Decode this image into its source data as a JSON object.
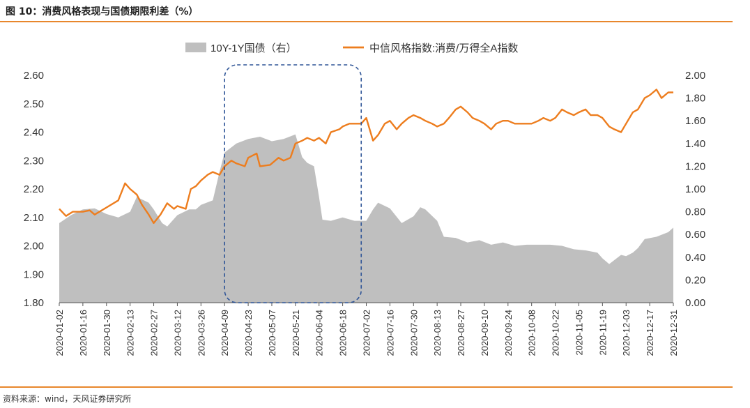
{
  "figure_title": "图 10：消费风格表现与国债期限利差（%）",
  "source": "资料来源：wind，天风证券研究所",
  "colors": {
    "area": "#bfbfbf",
    "line": "#ed7d1e",
    "highlight_box": "#2f5597",
    "accent_rule": "#e8872c"
  },
  "chart_data": {
    "type": "line+area",
    "x_ticks": [
      "2020-01-02",
      "2020-01-16",
      "2020-01-30",
      "2020-02-13",
      "2020-02-27",
      "2020-03-12",
      "2020-03-26",
      "2020-04-09",
      "2020-04-23",
      "2020-05-07",
      "2020-05-21",
      "2020-06-04",
      "2020-06-18",
      "2020-07-02",
      "2020-07-16",
      "2020-07-30",
      "2020-08-13",
      "2020-08-27",
      "2020-09-10",
      "2020-09-24",
      "2020-10-08",
      "2020-10-22",
      "2020-11-05",
      "2020-11-19",
      "2020-12-03",
      "2020-12-17",
      "2020-12-31"
    ],
    "y_left": {
      "ylim": [
        1.8,
        2.6
      ],
      "ticks": [
        "1.80",
        "1.90",
        "2.00",
        "2.10",
        "2.20",
        "2.30",
        "2.40",
        "2.50",
        "2.60"
      ]
    },
    "y_right": {
      "ylim": [
        0,
        2.0
      ],
      "ticks": [
        "0.00",
        "0.20",
        "0.40",
        "0.60",
        "0.80",
        "1.00",
        "1.20",
        "1.40",
        "1.60",
        "1.80",
        "2.00"
      ]
    },
    "legend_position": "top-center",
    "series": [
      {
        "name": "10Y-1Y国债（右）",
        "type": "area",
        "axis": "right",
        "points": [
          [
            "2020-01-02",
            0.7
          ],
          [
            "2020-01-09",
            0.77
          ],
          [
            "2020-01-16",
            0.82
          ],
          [
            "2020-01-23",
            0.83
          ],
          [
            "2020-01-30",
            0.78
          ],
          [
            "2020-02-06",
            0.75
          ],
          [
            "2020-02-13",
            0.8
          ],
          [
            "2020-02-17",
            0.93
          ],
          [
            "2020-02-24",
            0.88
          ],
          [
            "2020-02-27",
            0.82
          ],
          [
            "2020-03-03",
            0.7
          ],
          [
            "2020-03-06",
            0.67
          ],
          [
            "2020-03-12",
            0.77
          ],
          [
            "2020-03-19",
            0.82
          ],
          [
            "2020-03-23",
            0.82
          ],
          [
            "2020-03-26",
            0.86
          ],
          [
            "2020-04-02",
            0.9
          ],
          [
            "2020-04-06",
            1.15
          ],
          [
            "2020-04-09",
            1.32
          ],
          [
            "2020-04-16",
            1.4
          ],
          [
            "2020-04-23",
            1.44
          ],
          [
            "2020-04-30",
            1.46
          ],
          [
            "2020-05-07",
            1.42
          ],
          [
            "2020-05-14",
            1.44
          ],
          [
            "2020-05-21",
            1.48
          ],
          [
            "2020-05-25",
            1.28
          ],
          [
            "2020-05-28",
            1.23
          ],
          [
            "2020-06-01",
            1.2
          ],
          [
            "2020-06-04",
            0.93
          ],
          [
            "2020-06-06",
            0.73
          ],
          [
            "2020-06-11",
            0.72
          ],
          [
            "2020-06-18",
            0.75
          ],
          [
            "2020-06-25",
            0.72
          ],
          [
            "2020-07-02",
            0.72
          ],
          [
            "2020-07-06",
            0.82
          ],
          [
            "2020-07-09",
            0.88
          ],
          [
            "2020-07-16",
            0.83
          ],
          [
            "2020-07-23",
            0.7
          ],
          [
            "2020-07-30",
            0.76
          ],
          [
            "2020-08-03",
            0.84
          ],
          [
            "2020-08-06",
            0.82
          ],
          [
            "2020-08-13",
            0.72
          ],
          [
            "2020-08-17",
            0.58
          ],
          [
            "2020-08-24",
            0.57
          ],
          [
            "2020-08-31",
            0.53
          ],
          [
            "2020-09-07",
            0.55
          ],
          [
            "2020-09-14",
            0.51
          ],
          [
            "2020-09-21",
            0.53
          ],
          [
            "2020-09-28",
            0.5
          ],
          [
            "2020-10-05",
            0.51
          ],
          [
            "2020-10-12",
            0.51
          ],
          [
            "2020-10-19",
            0.51
          ],
          [
            "2020-10-26",
            0.5
          ],
          [
            "2020-11-02",
            0.47
          ],
          [
            "2020-11-09",
            0.46
          ],
          [
            "2020-11-16",
            0.44
          ],
          [
            "2020-11-19",
            0.39
          ],
          [
            "2020-11-23",
            0.34
          ],
          [
            "2020-11-30",
            0.42
          ],
          [
            "2020-12-03",
            0.41
          ],
          [
            "2020-12-07",
            0.44
          ],
          [
            "2020-12-10",
            0.48
          ],
          [
            "2020-12-14",
            0.56
          ],
          [
            "2020-12-21",
            0.58
          ],
          [
            "2020-12-28",
            0.62
          ],
          [
            "2020-12-31",
            0.66
          ]
        ]
      },
      {
        "name": "中信风格指数:消费/万得全A指数",
        "type": "line",
        "axis": "left",
        "points": [
          [
            "2020-01-02",
            2.13
          ],
          [
            "2020-01-06",
            2.105
          ],
          [
            "2020-01-10",
            2.12
          ],
          [
            "2020-01-16",
            2.12
          ],
          [
            "2020-01-20",
            2.125
          ],
          [
            "2020-01-23",
            2.11
          ],
          [
            "2020-01-30",
            2.135
          ],
          [
            "2020-02-06",
            2.16
          ],
          [
            "2020-02-10",
            2.22
          ],
          [
            "2020-02-13",
            2.2
          ],
          [
            "2020-02-17",
            2.18
          ],
          [
            "2020-02-20",
            2.145
          ],
          [
            "2020-02-24",
            2.11
          ],
          [
            "2020-02-27",
            2.08
          ],
          [
            "2020-03-02",
            2.11
          ],
          [
            "2020-03-06",
            2.15
          ],
          [
            "2020-03-10",
            2.13
          ],
          [
            "2020-03-12",
            2.14
          ],
          [
            "2020-03-17",
            2.13
          ],
          [
            "2020-03-20",
            2.2
          ],
          [
            "2020-03-23",
            2.21
          ],
          [
            "2020-03-26",
            2.23
          ],
          [
            "2020-03-30",
            2.25
          ],
          [
            "2020-04-02",
            2.26
          ],
          [
            "2020-04-06",
            2.25
          ],
          [
            "2020-04-09",
            2.28
          ],
          [
            "2020-04-13",
            2.3
          ],
          [
            "2020-04-16",
            2.29
          ],
          [
            "2020-04-21",
            2.28
          ],
          [
            "2020-04-23",
            2.31
          ],
          [
            "2020-04-28",
            2.325
          ],
          [
            "2020-04-30",
            2.28
          ],
          [
            "2020-05-06",
            2.285
          ],
          [
            "2020-05-07",
            2.29
          ],
          [
            "2020-05-11",
            2.31
          ],
          [
            "2020-05-14",
            2.3
          ],
          [
            "2020-05-18",
            2.31
          ],
          [
            "2020-05-21",
            2.36
          ],
          [
            "2020-05-25",
            2.37
          ],
          [
            "2020-05-28",
            2.38
          ],
          [
            "2020-06-01",
            2.37
          ],
          [
            "2020-06-04",
            2.38
          ],
          [
            "2020-06-08",
            2.36
          ],
          [
            "2020-06-11",
            2.4
          ],
          [
            "2020-06-16",
            2.41
          ],
          [
            "2020-06-18",
            2.42
          ],
          [
            "2020-06-22",
            2.43
          ],
          [
            "2020-06-29",
            2.43
          ],
          [
            "2020-07-02",
            2.45
          ],
          [
            "2020-07-06",
            2.37
          ],
          [
            "2020-07-09",
            2.39
          ],
          [
            "2020-07-13",
            2.43
          ],
          [
            "2020-07-16",
            2.44
          ],
          [
            "2020-07-20",
            2.41
          ],
          [
            "2020-07-23",
            2.43
          ],
          [
            "2020-07-27",
            2.45
          ],
          [
            "2020-07-30",
            2.46
          ],
          [
            "2020-08-03",
            2.45
          ],
          [
            "2020-08-06",
            2.44
          ],
          [
            "2020-08-10",
            2.43
          ],
          [
            "2020-08-13",
            2.42
          ],
          [
            "2020-08-17",
            2.43
          ],
          [
            "2020-08-20",
            2.45
          ],
          [
            "2020-08-24",
            2.48
          ],
          [
            "2020-08-27",
            2.49
          ],
          [
            "2020-08-31",
            2.47
          ],
          [
            "2020-09-03",
            2.45
          ],
          [
            "2020-09-07",
            2.44
          ],
          [
            "2020-09-10",
            2.43
          ],
          [
            "2020-09-14",
            2.41
          ],
          [
            "2020-09-17",
            2.43
          ],
          [
            "2020-09-21",
            2.44
          ],
          [
            "2020-09-24",
            2.44
          ],
          [
            "2020-09-28",
            2.43
          ],
          [
            "2020-10-08",
            2.43
          ],
          [
            "2020-10-12",
            2.44
          ],
          [
            "2020-10-15",
            2.45
          ],
          [
            "2020-10-19",
            2.44
          ],
          [
            "2020-10-22",
            2.45
          ],
          [
            "2020-10-26",
            2.48
          ],
          [
            "2020-10-29",
            2.47
          ],
          [
            "2020-11-02",
            2.46
          ],
          [
            "2020-11-05",
            2.47
          ],
          [
            "2020-11-09",
            2.48
          ],
          [
            "2020-11-12",
            2.46
          ],
          [
            "2020-11-16",
            2.46
          ],
          [
            "2020-11-19",
            2.45
          ],
          [
            "2020-11-23",
            2.42
          ],
          [
            "2020-11-26",
            2.41
          ],
          [
            "2020-11-30",
            2.4
          ],
          [
            "2020-12-03",
            2.43
          ],
          [
            "2020-12-07",
            2.47
          ],
          [
            "2020-12-10",
            2.48
          ],
          [
            "2020-12-14",
            2.52
          ],
          [
            "2020-12-17",
            2.53
          ],
          [
            "2020-12-21",
            2.55
          ],
          [
            "2020-12-24",
            2.52
          ],
          [
            "2020-12-28",
            2.54
          ],
          [
            "2020-12-31",
            2.54
          ]
        ]
      }
    ],
    "highlight_range": [
      "2020-04-09",
      "2020-06-29"
    ]
  }
}
